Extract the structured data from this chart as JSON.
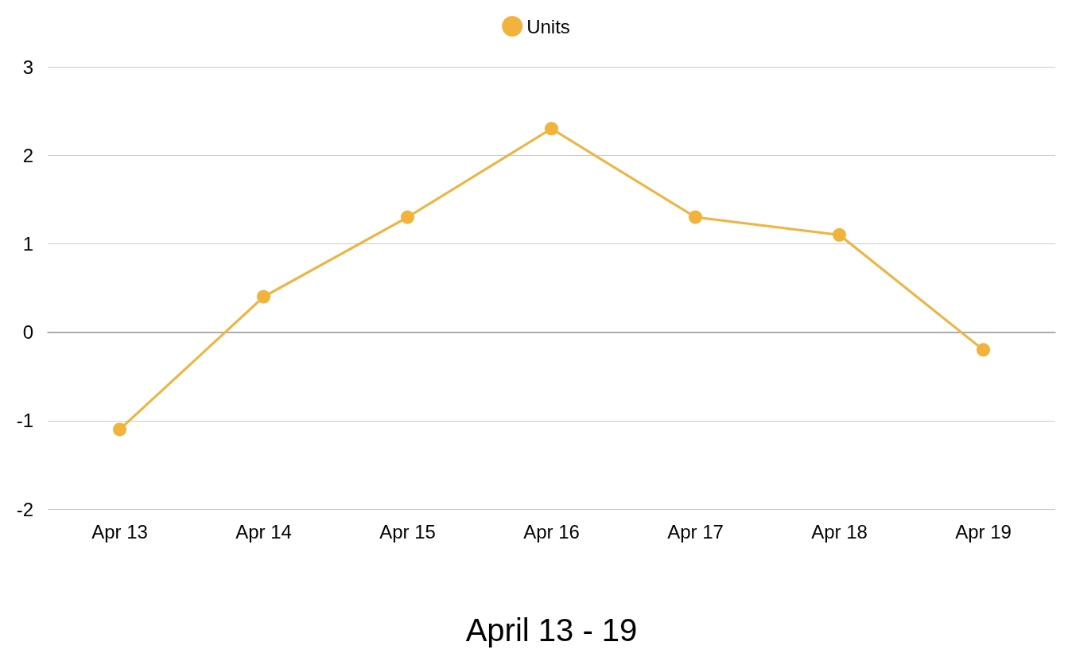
{
  "chart_data": {
    "type": "line",
    "xlabel": "April 13 - 19",
    "categories": [
      "Apr 13",
      "Apr 14",
      "Apr 15",
      "Apr 16",
      "Apr 17",
      "Apr 18",
      "Apr 19"
    ],
    "series": [
      {
        "name": "Units",
        "color": "#f2b33d",
        "values": [
          -1.1,
          0.4,
          1.3,
          2.3,
          1.3,
          1.1,
          -0.2
        ]
      }
    ],
    "ylim": [
      -2,
      3
    ],
    "yticks": [
      -2,
      -1,
      0,
      1,
      2,
      3
    ],
    "grid": "y",
    "legend": "top",
    "marker": "circle",
    "line_style": "solid"
  }
}
